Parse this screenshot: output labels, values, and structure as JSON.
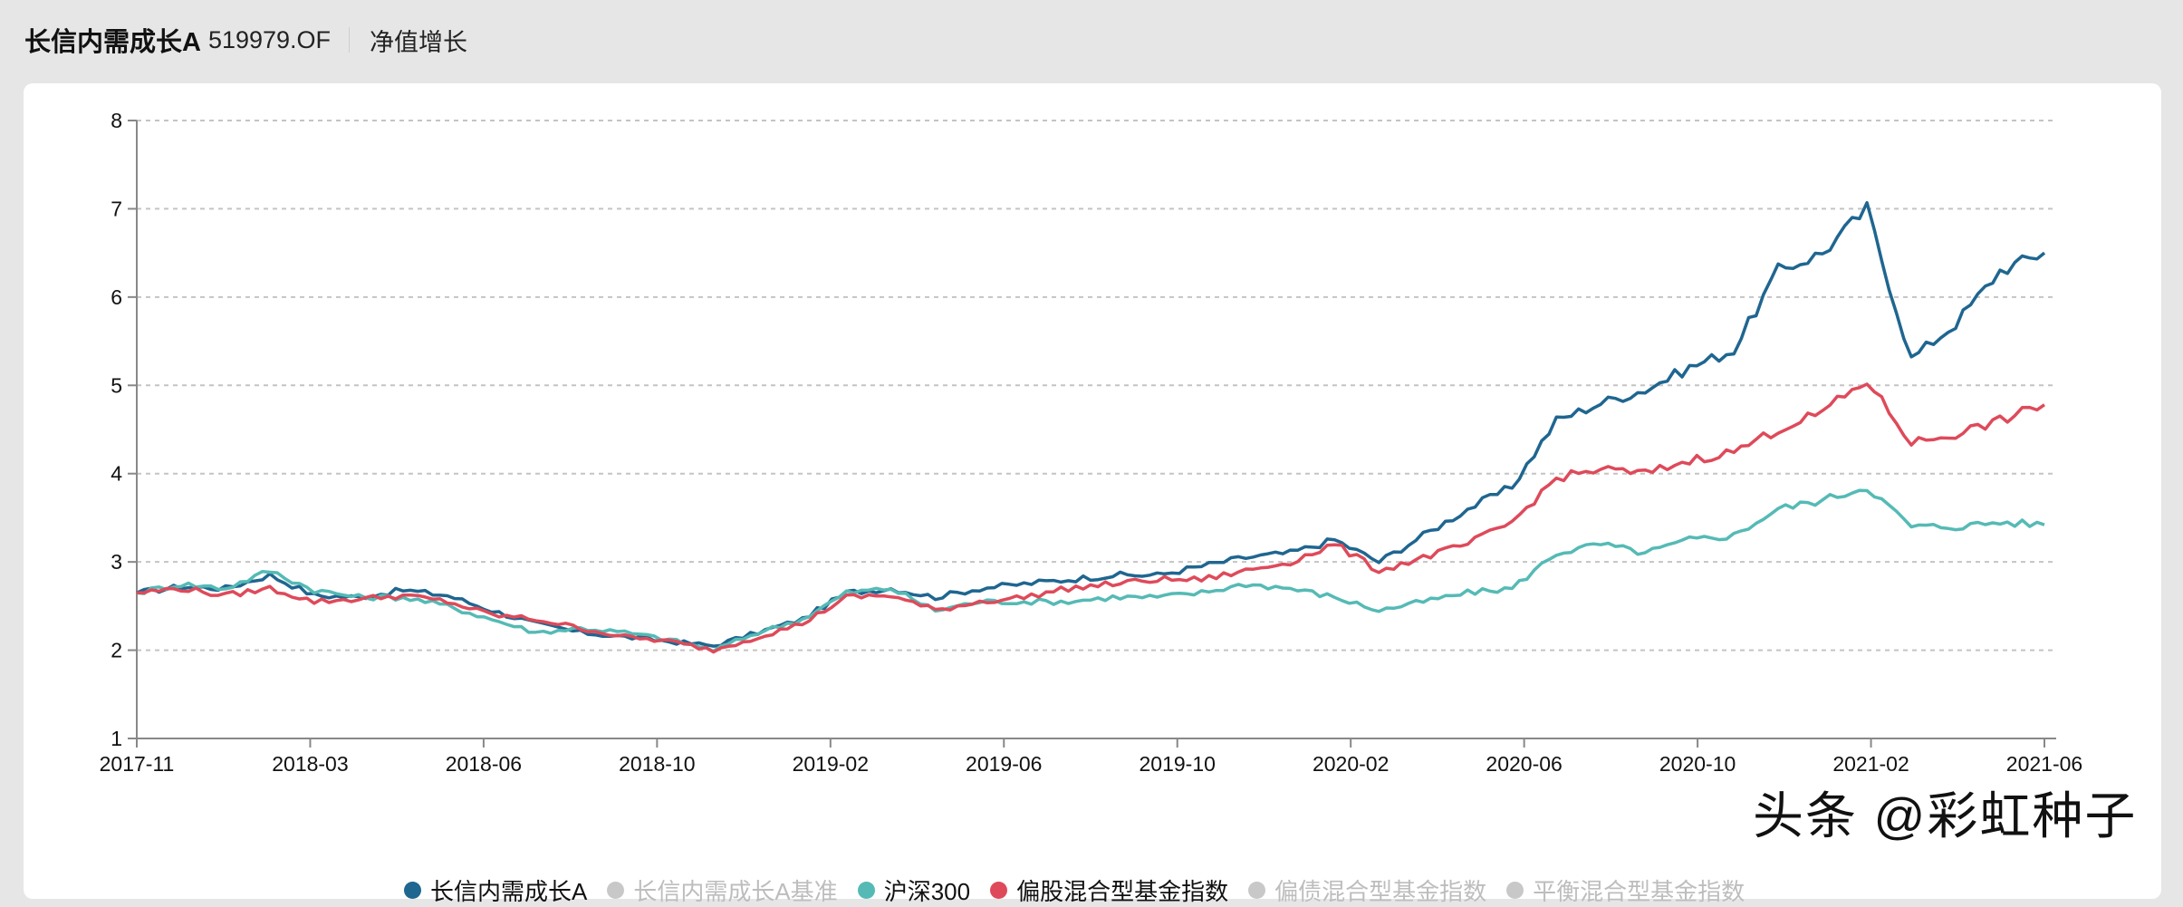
{
  "header": {
    "fund_name": "长信内需成长A",
    "fund_code": "519979.OF",
    "tab_label": "净值增长"
  },
  "watermark": "头条 @彩虹种子",
  "legend": [
    {
      "label": "长信内需成长A",
      "color": "#1f6690",
      "active": true
    },
    {
      "label": "长信内需成长A基准",
      "color": "#c8c8c8",
      "active": false
    },
    {
      "label": "沪深300",
      "color": "#55bab5",
      "active": true
    },
    {
      "label": "偏股混合型基金指数",
      "color": "#de4a5a",
      "active": true
    },
    {
      "label": "偏债混合型基金指数",
      "color": "#c8c8c8",
      "active": false
    },
    {
      "label": "平衡混合型基金指数",
      "color": "#c8c8c8",
      "active": false
    }
  ],
  "chart_data": {
    "type": "line",
    "title": "净值增长",
    "xlabel": "",
    "ylabel": "",
    "ylim": [
      1,
      8
    ],
    "yticks": [
      1,
      2,
      3,
      4,
      5,
      6,
      7,
      8
    ],
    "xtick_labels": [
      "2017-11",
      "2018-03",
      "2018-06",
      "2018-10",
      "2019-02",
      "2019-06",
      "2019-10",
      "2020-02",
      "2020-06",
      "2020-10",
      "2021-02",
      "2021-06"
    ],
    "grid": "horizontal dashed",
    "legend_position": "bottom",
    "x": [
      "2017-11",
      "2017-12",
      "2018-01",
      "2018-02",
      "2018-03",
      "2018-04",
      "2018-05",
      "2018-06",
      "2018-07",
      "2018-08",
      "2018-09",
      "2018-10",
      "2018-11",
      "2018-12",
      "2019-01",
      "2019-02",
      "2019-03",
      "2019-04",
      "2019-05",
      "2019-06",
      "2019-07",
      "2019-08",
      "2019-09",
      "2019-10",
      "2019-11",
      "2019-12",
      "2020-01",
      "2020-02",
      "2020-03",
      "2020-04",
      "2020-05",
      "2020-06",
      "2020-07",
      "2020-08",
      "2020-09",
      "2020-10",
      "2020-11",
      "2020-12",
      "2021-01",
      "2021-02",
      "2021-03",
      "2021-04",
      "2021-05",
      "2021-06"
    ],
    "series": [
      {
        "name": "长信内需成长A",
        "color": "#1f6690",
        "values": [
          2.65,
          2.72,
          2.7,
          2.85,
          2.62,
          2.6,
          2.68,
          2.62,
          2.45,
          2.3,
          2.2,
          2.15,
          2.1,
          2.05,
          2.2,
          2.35,
          2.65,
          2.7,
          2.6,
          2.7,
          2.75,
          2.8,
          2.85,
          2.85,
          2.95,
          3.05,
          3.1,
          3.25,
          3.0,
          3.3,
          3.6,
          3.85,
          4.6,
          4.8,
          4.95,
          5.2,
          5.4,
          6.3,
          6.5,
          7.0,
          5.3,
          5.7,
          6.3,
          6.5
        ]
      },
      {
        "name": "沪深300",
        "color": "#55bab5",
        "values": [
          2.65,
          2.75,
          2.7,
          2.9,
          2.68,
          2.6,
          2.6,
          2.5,
          2.35,
          2.2,
          2.25,
          2.2,
          2.12,
          2.0,
          2.2,
          2.35,
          2.65,
          2.7,
          2.45,
          2.55,
          2.55,
          2.55,
          2.6,
          2.6,
          2.65,
          2.75,
          2.7,
          2.6,
          2.45,
          2.55,
          2.65,
          2.7,
          3.1,
          3.2,
          3.1,
          3.25,
          3.3,
          3.6,
          3.7,
          3.85,
          3.4,
          3.4,
          3.45,
          3.42
        ]
      },
      {
        "name": "偏股混合型基金指数",
        "color": "#de4a5a",
        "values": [
          2.65,
          2.7,
          2.62,
          2.7,
          2.55,
          2.58,
          2.62,
          2.55,
          2.4,
          2.35,
          2.25,
          2.15,
          2.1,
          2.0,
          2.15,
          2.3,
          2.6,
          2.62,
          2.45,
          2.55,
          2.6,
          2.7,
          2.75,
          2.8,
          2.8,
          2.9,
          3.0,
          3.2,
          2.9,
          3.05,
          3.2,
          3.45,
          3.95,
          4.05,
          4.0,
          4.15,
          4.25,
          4.5,
          4.7,
          5.05,
          4.35,
          4.45,
          4.6,
          4.78
        ]
      }
    ]
  }
}
